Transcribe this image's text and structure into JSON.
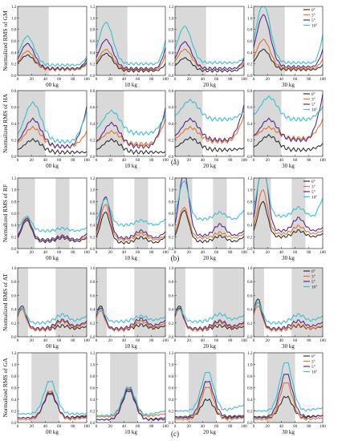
{
  "figure": {
    "x_ticks": [
      "0",
      "20",
      "40",
      "60",
      "80",
      "100"
    ],
    "panel_labels": [
      "(a)",
      "(b)",
      "(c)"
    ]
  },
  "legend": {
    "entries": [
      "0°",
      "3°",
      "5°",
      "10°"
    ],
    "colors": [
      "#333333",
      "#e8742a",
      "#5b2a8c",
      "#39c2d0"
    ]
  },
  "shade_color": "#d9d9d9",
  "chart_data": [
    {
      "type": "line",
      "ylabel": "Normalized RMS of GM",
      "ylim": [
        0,
        1.2
      ],
      "yticks": [
        "0.0",
        "0.2",
        "0.4",
        "0.6",
        "0.8",
        "1.0",
        "1.2"
      ],
      "shaded": [
        [
          0,
          45
        ]
      ],
      "loads": [
        {
          "label": "00 kg",
          "series": [
            {
              "peak": 0.35,
              "base": 0.12,
              "tail": 0.22
            },
            {
              "peak": 0.42,
              "base": 0.1,
              "tail": 0.2
            },
            {
              "peak": 0.55,
              "base": 0.12,
              "tail": 0.28
            },
            {
              "peak": 0.68,
              "base": 0.18,
              "tail": 0.32
            }
          ]
        },
        {
          "label": "10 kg",
          "series": [
            {
              "peak": 0.38,
              "base": 0.08,
              "tail": 0.2
            },
            {
              "peak": 0.45,
              "base": 0.1,
              "tail": 0.35
            },
            {
              "peak": 0.62,
              "base": 0.12,
              "tail": 0.48
            },
            {
              "peak": 0.92,
              "base": 0.2,
              "tail": 0.6
            }
          ]
        },
        {
          "label": "20 kg",
          "series": [
            {
              "peak": 0.3,
              "base": 0.08,
              "tail": 0.18
            },
            {
              "peak": 0.45,
              "base": 0.12,
              "tail": 0.22
            },
            {
              "peak": 0.58,
              "base": 0.12,
              "tail": 0.28
            },
            {
              "peak": 0.85,
              "base": 0.22,
              "tail": 0.3
            }
          ]
        },
        {
          "label": "30 kg",
          "series": [
            {
              "peak": 0.45,
              "base": 0.1,
              "tail": 0.18
            },
            {
              "peak": 0.62,
              "base": 0.12,
              "tail": 0.28
            },
            {
              "peak": 1.05,
              "base": 0.15,
              "tail": 0.45
            },
            {
              "peak": 1.25,
              "base": 0.22,
              "tail": 0.7
            }
          ]
        }
      ]
    },
    {
      "type": "line",
      "ylabel": "Normalized RMS of HA",
      "ylim": [
        0,
        0.8
      ],
      "yticks": [
        "0.0",
        "0.2",
        "0.4",
        "0.6",
        "0.8"
      ],
      "shaded": [
        [
          0,
          40
        ]
      ],
      "loads": [
        {
          "label": "00 kg",
          "series": [
            {
              "peak": 0.2,
              "base": 0.05,
              "tail": 0.05
            },
            {
              "peak": 0.35,
              "base": 0.12,
              "tail": 0.3
            },
            {
              "peak": 0.45,
              "base": 0.12,
              "tail": 0.6
            },
            {
              "peak": 0.65,
              "base": 0.18,
              "tail": 0.55
            }
          ]
        },
        {
          "label": "10 kg",
          "series": [
            {
              "peak": 0.2,
              "base": 0.05,
              "tail": 0.05
            },
            {
              "peak": 0.3,
              "base": 0.15,
              "tail": 0.45
            },
            {
              "peak": 0.4,
              "base": 0.12,
              "tail": 0.58
            },
            {
              "peak": 0.55,
              "base": 0.28,
              "tail": 0.5
            }
          ]
        },
        {
          "label": "20 kg",
          "series": [
            {
              "peak": 0.22,
              "base": 0.08,
              "tail": 0.1
            },
            {
              "peak": 0.35,
              "base": 0.18,
              "tail": 0.5
            },
            {
              "peak": 0.45,
              "base": 0.2,
              "tail": 0.62
            },
            {
              "peak": 0.68,
              "base": 0.45,
              "tail": 0.55
            }
          ]
        },
        {
          "label": "30 kg",
          "series": [
            {
              "peak": 0.25,
              "base": 0.08,
              "tail": 0.15
            },
            {
              "peak": 0.35,
              "base": 0.22,
              "tail": 0.45
            },
            {
              "peak": 0.45,
              "base": 0.2,
              "tail": 0.75
            },
            {
              "peak": 0.72,
              "base": 0.45,
              "tail": 0.6
            }
          ]
        }
      ]
    },
    {
      "type": "line",
      "ylabel": "Normalized RMS of RF",
      "ylim": [
        0,
        1.2
      ],
      "yticks": [
        "0.0",
        "0.2",
        "0.4",
        "0.6",
        "0.8",
        "1.0",
        "1.2"
      ],
      "shaded": [
        [
          0,
          25
        ],
        [
          55,
          75
        ]
      ],
      "loads": [
        {
          "label": "00 kg",
          "series": [
            {
              "peak": 0.48,
              "base": 0.12,
              "tail": 0.18
            },
            {
              "peak": 0.5,
              "base": 0.15,
              "tail": 0.2
            },
            {
              "peak": 0.52,
              "base": 0.15,
              "tail": 0.25
            },
            {
              "peak": 0.55,
              "base": 0.3,
              "tail": 0.35
            }
          ]
        },
        {
          "label": "10 kg",
          "series": [
            {
              "peak": 0.62,
              "base": 0.1,
              "tail": 0.2
            },
            {
              "peak": 0.75,
              "base": 0.15,
              "tail": 0.22
            },
            {
              "peak": 0.88,
              "base": 0.18,
              "tail": 0.28
            },
            {
              "peak": 0.85,
              "base": 0.4,
              "tail": 0.5
            }
          ]
        },
        {
          "label": "20 kg",
          "series": [
            {
              "peak": 0.65,
              "base": 0.12,
              "tail": 0.2
            },
            {
              "peak": 0.7,
              "base": 0.18,
              "tail": 0.25
            },
            {
              "peak": 1.3,
              "base": 0.22,
              "tail": 0.3
            },
            {
              "peak": 1.15,
              "base": 0.5,
              "tail": 0.65
            }
          ]
        },
        {
          "label": "30 kg",
          "series": [
            {
              "peak": 0.8,
              "base": 0.2,
              "tail": 0.25
            },
            {
              "peak": 1.0,
              "base": 0.25,
              "tail": 0.3
            },
            {
              "peak": 1.55,
              "base": 0.3,
              "tail": 0.35
            },
            {
              "peak": 1.4,
              "base": 0.55,
              "tail": 0.85
            }
          ]
        }
      ]
    },
    {
      "type": "line",
      "ylabel": "Normalized RMS of AT",
      "ylim": [
        0,
        1.0
      ],
      "yticks": [
        "0.0",
        "0.2",
        "0.4",
        "0.6",
        "0.8",
        "1.0"
      ],
      "shaded": [
        [
          0,
          15
        ],
        [
          55,
          100
        ]
      ],
      "loads": [
        {
          "label": "00 kg",
          "series": [
            {
              "peak": 0.42,
              "base": 0.1,
              "tail": 0.2
            },
            {
              "peak": 0.4,
              "base": 0.1,
              "tail": 0.3
            },
            {
              "peak": 0.45,
              "base": 0.12,
              "tail": 0.32
            },
            {
              "peak": 0.42,
              "base": 0.2,
              "tail": 0.4
            }
          ]
        },
        {
          "label": "10 kg",
          "series": [
            {
              "peak": 0.45,
              "base": 0.1,
              "tail": 0.22
            },
            {
              "peak": 0.38,
              "base": 0.1,
              "tail": 0.3
            },
            {
              "peak": 0.42,
              "base": 0.12,
              "tail": 0.35
            },
            {
              "peak": 0.4,
              "base": 0.22,
              "tail": 0.35
            }
          ]
        },
        {
          "label": "20 kg",
          "series": [
            {
              "peak": 0.45,
              "base": 0.1,
              "tail": 0.2
            },
            {
              "peak": 0.4,
              "base": 0.1,
              "tail": 0.28
            },
            {
              "peak": 0.42,
              "base": 0.12,
              "tail": 0.3
            },
            {
              "peak": 0.4,
              "base": 0.22,
              "tail": 0.4
            }
          ]
        },
        {
          "label": "30 kg",
          "series": [
            {
              "peak": 0.55,
              "base": 0.1,
              "tail": 0.2
            },
            {
              "peak": 0.45,
              "base": 0.1,
              "tail": 0.22
            },
            {
              "peak": 0.5,
              "base": 0.12,
              "tail": 0.3
            },
            {
              "peak": 0.5,
              "base": 0.2,
              "tail": 0.4
            }
          ]
        }
      ]
    },
    {
      "type": "line",
      "ylabel": "Normalized RMS of GA",
      "ylim": [
        0,
        1.2
      ],
      "yticks": [
        "0.0",
        "0.2",
        "0.4",
        "0.6",
        "0.8",
        "1.0",
        "1.2"
      ],
      "shaded": [
        [
          20,
          60
        ]
      ],
      "loads": [
        {
          "label": "00 kg",
          "series": [
            {
              "peak": 0.5,
              "base": 0.08,
              "tail": 0.1
            },
            {
              "peak": 0.55,
              "base": 0.05,
              "tail": 0.08
            },
            {
              "peak": 0.52,
              "base": 0.08,
              "tail": 0.12
            },
            {
              "peak": 0.72,
              "base": 0.15,
              "tail": 0.15
            }
          ]
        },
        {
          "label": "10 kg",
          "series": [
            {
              "peak": 0.55,
              "base": 0.05,
              "tail": 0.08
            },
            {
              "peak": 0.6,
              "base": 0.1,
              "tail": 0.15
            },
            {
              "peak": 0.58,
              "base": 0.05,
              "tail": 0.05
            },
            {
              "peak": 0.62,
              "base": 0.12,
              "tail": 0.2
            }
          ]
        },
        {
          "label": "20 kg",
          "series": [
            {
              "peak": 0.4,
              "base": 0.08,
              "tail": 0.1
            },
            {
              "peak": 0.62,
              "base": 0.05,
              "tail": 0.08
            },
            {
              "peak": 0.72,
              "base": 0.1,
              "tail": 0.12
            },
            {
              "peak": 0.88,
              "base": 0.2,
              "tail": 0.3
            }
          ]
        },
        {
          "label": "30 kg",
          "series": [
            {
              "peak": 0.45,
              "base": 0.08,
              "tail": 0.12
            },
            {
              "peak": 0.7,
              "base": 0.05,
              "tail": 0.08
            },
            {
              "peak": 0.85,
              "base": 0.1,
              "tail": 0.12
            },
            {
              "peak": 1.05,
              "base": 0.2,
              "tail": 0.25
            }
          ]
        }
      ]
    }
  ]
}
